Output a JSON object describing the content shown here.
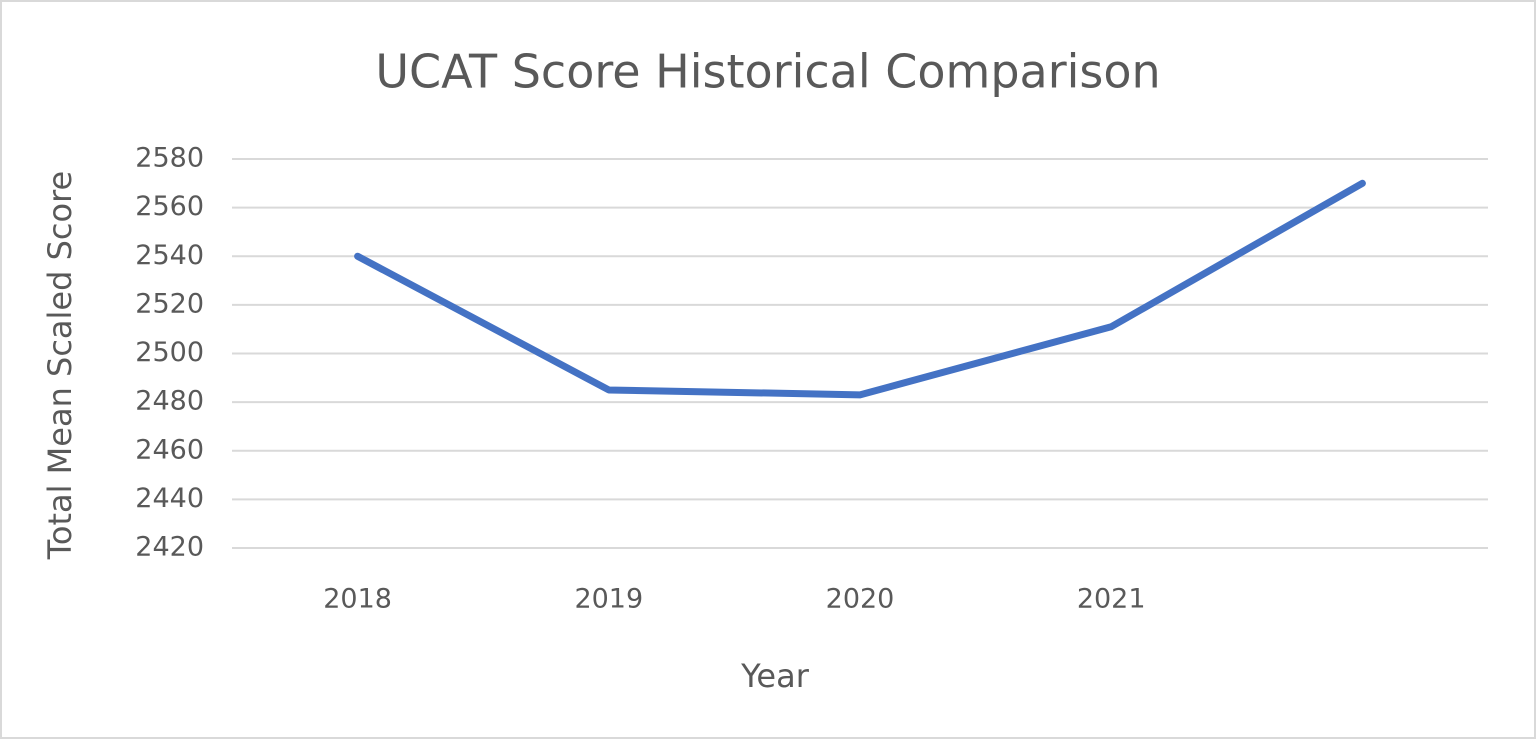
{
  "chart_data": {
    "type": "line",
    "title": "UCAT Score Historical Comparison",
    "x_label": "Year",
    "y_label": "Total Mean Scaled Score",
    "categories": [
      "2018",
      "2019",
      "2020",
      "2021",
      null
    ],
    "values": [
      2540,
      2485,
      2483,
      2511,
      2570
    ],
    "color": "#4472c4",
    "ylim": [
      2420,
      2580
    ],
    "yticks": [
      2420,
      2440,
      2460,
      2480,
      2500,
      2520,
      2540,
      2560,
      2580
    ],
    "grid": true
  }
}
